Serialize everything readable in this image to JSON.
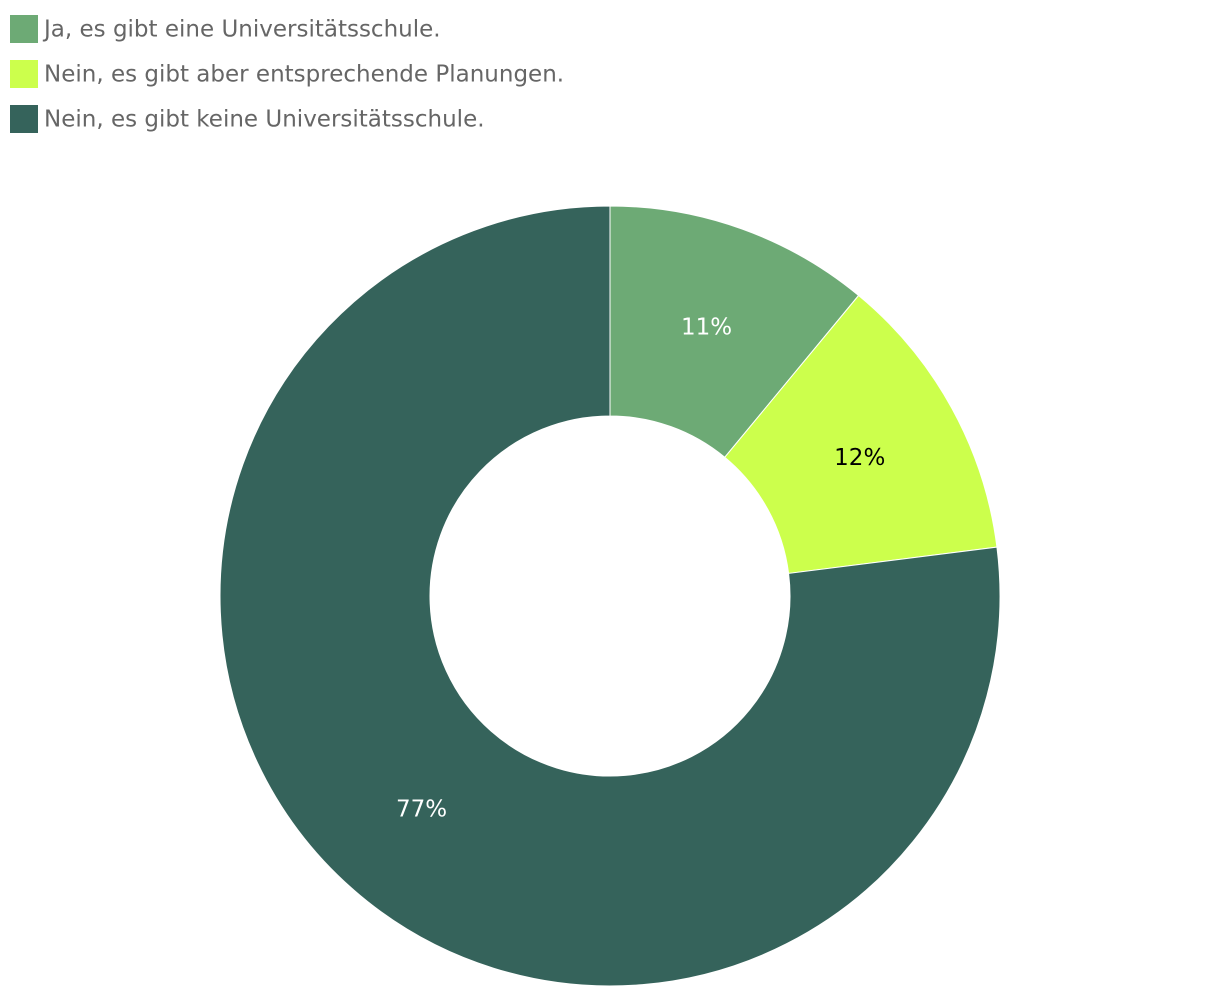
{
  "chart_data": {
    "type": "donut",
    "categories": [
      "Ja, es gibt eine Universitätsschule.",
      "Nein, es gibt aber entsprechende Planungen.",
      "Nein, es gibt keine Universitätsschule."
    ],
    "values": [
      11,
      12,
      77
    ],
    "value_labels": [
      "11%",
      "12%",
      "77%"
    ],
    "colors": [
      "#6daa75",
      "#ccff4c",
      "#35635b"
    ],
    "legend": "top-left"
  }
}
